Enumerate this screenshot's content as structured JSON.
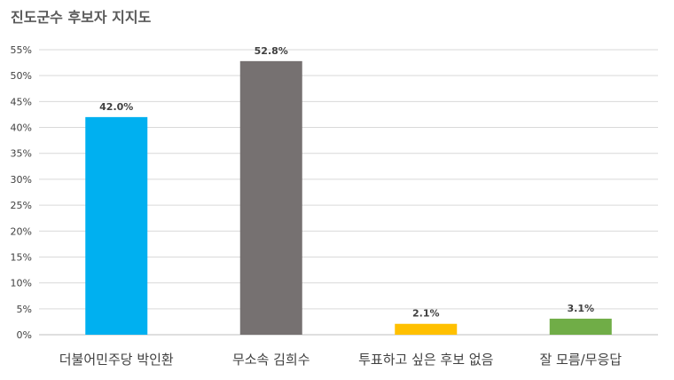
{
  "title": "진도군수 후보자 지지도",
  "chart_data": {
    "type": "bar",
    "title": "진도군수 후보자 지지도",
    "categories": [
      "더불어민주당 박인환",
      "무소속 김희수",
      "투표하고 싶은 후보 없음",
      "잘 모름/무응답"
    ],
    "values": [
      42.0,
      52.8,
      2.1,
      3.1
    ],
    "value_labels": [
      "42.0%",
      "52.8%",
      "2.1%",
      "3.1%"
    ],
    "colors": [
      "#00B0F0",
      "#767171",
      "#FFC000",
      "#70AD47"
    ],
    "ylim": [
      0,
      55
    ],
    "yticks": [
      0,
      5,
      10,
      15,
      20,
      25,
      30,
      35,
      40,
      45,
      50,
      55
    ],
    "ytick_labels": [
      "0%",
      "5%",
      "10%",
      "15%",
      "20%",
      "25%",
      "30%",
      "35%",
      "40%",
      "45%",
      "50%",
      "55%"
    ],
    "xlabel": "",
    "ylabel": "",
    "grid": true,
    "legend": "none"
  }
}
